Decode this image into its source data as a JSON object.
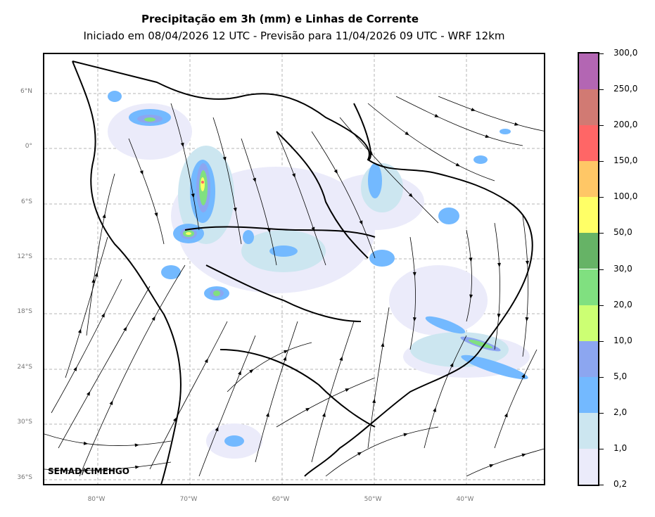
{
  "header": {
    "title": "Precipitação em 3h (mm) e Linhas de Corrente",
    "subtitle": "Iniciado em 08/04/2026 12 UTC - Previsão para 11/04/2026 09 UTC - WRF 12km"
  },
  "map": {
    "lat_labels": [
      "6°N",
      "0°",
      "6°S",
      "12°S",
      "18°S",
      "24°S",
      "30°S",
      "36°S"
    ],
    "lon_labels": [
      "80°W",
      "70°W",
      "60°W",
      "50°W",
      "40°W"
    ],
    "watermark": "SEMAD/CIMEHGO",
    "background": "#ffffff",
    "streamline_color": "#000000",
    "boundary_color": "#000000"
  },
  "colorbar": {
    "labels": [
      "0,2",
      "1,0",
      "2,0",
      "5,0",
      "10,0",
      "20,0",
      "30,0",
      "50,0",
      "100,0",
      "150,0",
      "200,0",
      "250,0",
      "300,0"
    ],
    "colors": [
      "#ebebfa",
      "#cce6f0",
      "#73b9ff",
      "#8ca6f0",
      "#ccff73",
      "#80e080",
      "#66b366",
      "#ffff66",
      "#ffc766",
      "#ff6666",
      "#d17a73",
      "#b366b3"
    ]
  }
}
